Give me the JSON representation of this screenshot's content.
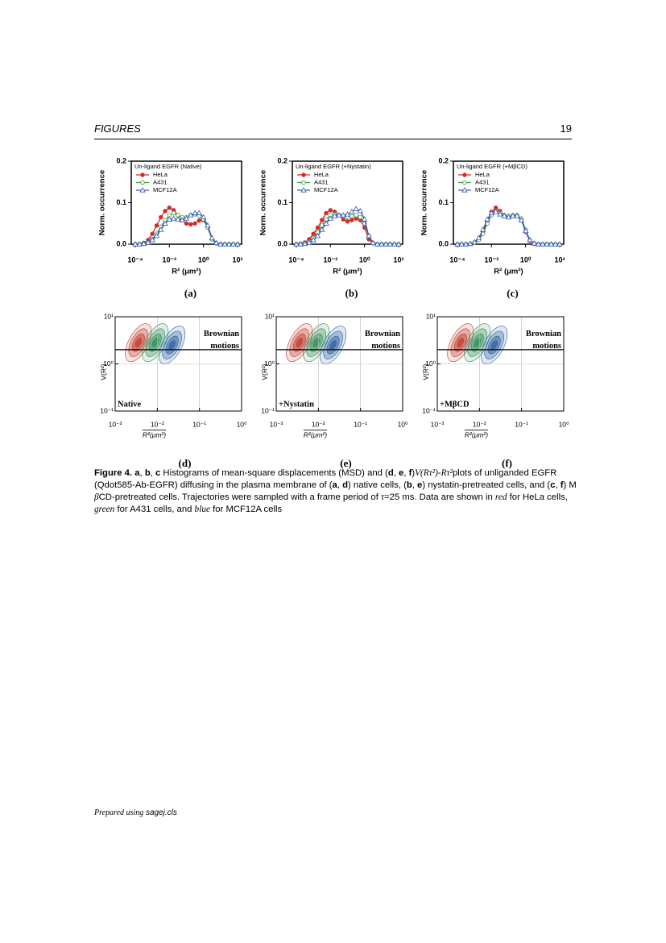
{
  "header": {
    "left": "FIGURES",
    "right": "19"
  },
  "chart_data": [
    {
      "type": "line",
      "label": "(a)",
      "legend_title": "Un-ligand EGFR (Native)",
      "ylabel": "Norm. occurrence",
      "xlabel": "R² (μm²)",
      "xscale": "log",
      "xlim": [
        0.0001,
        100
      ],
      "ylim": [
        0,
        0.2
      ],
      "xticks": [
        {
          "value": 0.0001,
          "label": "10⁻⁴"
        },
        {
          "value": 0.01,
          "label": "10⁻²"
        },
        {
          "value": 1,
          "label": "10⁰"
        },
        {
          "value": 100,
          "label": "10²"
        }
      ],
      "yticks": [
        {
          "value": 0,
          "label": "0.0"
        },
        0.1,
        0.2
      ],
      "x": [
        0.0001,
        0.000178,
        0.000316,
        0.000562,
        0.001,
        0.00178,
        0.00316,
        0.00562,
        0.01,
        0.0178,
        0.0316,
        0.0562,
        0.1,
        0.178,
        0.316,
        0.562,
        1,
        1.78,
        3.16,
        5.62,
        10,
        17.8,
        31.6,
        56.2,
        100
      ],
      "series": [
        {
          "name": "HeLa",
          "color": "#d42a2a",
          "marker": "circle-filled",
          "values": [
            0,
            0,
            0.003,
            0.01,
            0.025,
            0.045,
            0.065,
            0.08,
            0.088,
            0.082,
            0.07,
            0.058,
            0.05,
            0.048,
            0.05,
            0.057,
            0.058,
            0.04,
            0.012,
            0.002,
            0,
            0,
            0,
            0,
            0
          ]
        },
        {
          "name": "A431",
          "color": "#3a9a3a",
          "marker": "circle-open",
          "values": [
            0,
            0,
            0.001,
            0.005,
            0.012,
            0.025,
            0.042,
            0.058,
            0.07,
            0.075,
            0.07,
            0.065,
            0.065,
            0.07,
            0.072,
            0.068,
            0.06,
            0.04,
            0.012,
            0.002,
            0,
            0,
            0,
            0,
            0
          ]
        },
        {
          "name": "MCF12A",
          "color": "#3355bb",
          "marker": "triangle-open",
          "values": [
            0,
            0,
            0.001,
            0.004,
            0.01,
            0.02,
            0.035,
            0.05,
            0.06,
            0.062,
            0.06,
            0.058,
            0.062,
            0.07,
            0.075,
            0.075,
            0.065,
            0.045,
            0.015,
            0.003,
            0,
            0,
            0,
            0,
            0
          ]
        }
      ]
    },
    {
      "type": "line",
      "label": "(b)",
      "legend_title": "Un-ligand EGFR (+Nystatin)",
      "ylabel": "Norm. occurrence",
      "xlabel": "R² (μm²)",
      "xscale": "log",
      "xlim": [
        0.0001,
        100
      ],
      "ylim": [
        0,
        0.2
      ],
      "xticks": [
        {
          "value": 0.0001,
          "label": "10⁻⁴"
        },
        {
          "value": 0.01,
          "label": "10⁻²"
        },
        {
          "value": 1,
          "label": "10⁰"
        },
        {
          "value": 100,
          "label": "10²"
        }
      ],
      "yticks": [
        {
          "value": 0,
          "label": "0.0"
        },
        0.1,
        0.2
      ],
      "x": [
        0.0001,
        0.000178,
        0.000316,
        0.000562,
        0.001,
        0.00178,
        0.00316,
        0.00562,
        0.01,
        0.0178,
        0.0316,
        0.0562,
        0.1,
        0.178,
        0.316,
        0.562,
        1,
        1.78,
        3.16,
        5.62,
        10,
        17.8,
        31.6,
        56.2,
        100
      ],
      "series": [
        {
          "name": "HeLa",
          "color": "#d42a2a",
          "marker": "circle-filled",
          "values": [
            0,
            0.001,
            0.004,
            0.012,
            0.025,
            0.04,
            0.058,
            0.075,
            0.082,
            0.078,
            0.07,
            0.06,
            0.055,
            0.058,
            0.062,
            0.058,
            0.04,
            0.012,
            0.002,
            0,
            0,
            0,
            0,
            0,
            0
          ]
        },
        {
          "name": "A431",
          "color": "#3a9a3a",
          "marker": "circle-open",
          "values": [
            0,
            0,
            0.002,
            0.006,
            0.015,
            0.028,
            0.045,
            0.06,
            0.07,
            0.072,
            0.07,
            0.068,
            0.065,
            0.068,
            0.07,
            0.065,
            0.05,
            0.02,
            0.003,
            0,
            0,
            0,
            0,
            0,
            0
          ]
        },
        {
          "name": "MCF12A",
          "color": "#3355bb",
          "marker": "triangle-open",
          "values": [
            0,
            0,
            0.001,
            0.004,
            0.01,
            0.02,
            0.035,
            0.05,
            0.062,
            0.068,
            0.07,
            0.07,
            0.072,
            0.078,
            0.085,
            0.08,
            0.06,
            0.02,
            0.003,
            0,
            0,
            0,
            0,
            0,
            0
          ]
        }
      ]
    },
    {
      "type": "line",
      "label": "(c)",
      "legend_title": "Un-ligand EGFR (+MβCD)",
      "ylabel": "Norm. occurrence",
      "xlabel": "R² (μm²)",
      "xscale": "log",
      "xlim": [
        0.0001,
        100
      ],
      "ylim": [
        0,
        0.2
      ],
      "xticks": [
        {
          "value": 0.0001,
          "label": "10⁻⁴"
        },
        {
          "value": 0.01,
          "label": "10⁻²"
        },
        {
          "value": 1,
          "label": "10⁰"
        },
        {
          "value": 100,
          "label": "10²"
        }
      ],
      "yticks": [
        {
          "value": 0,
          "label": "0.0"
        },
        0.1,
        0.2
      ],
      "x": [
        0.0001,
        0.000178,
        0.000316,
        0.000562,
        0.001,
        0.00178,
        0.00316,
        0.00562,
        0.01,
        0.0178,
        0.0316,
        0.0562,
        0.1,
        0.178,
        0.316,
        0.562,
        1,
        1.78,
        3.16,
        5.62,
        10,
        17.8,
        31.6,
        56.2,
        100
      ],
      "series": [
        {
          "name": "HeLa",
          "color": "#d42a2a",
          "marker": "circle-filled",
          "values": [
            0,
            0,
            0,
            0.001,
            0.004,
            0.012,
            0.03,
            0.055,
            0.078,
            0.088,
            0.08,
            0.07,
            0.065,
            0.068,
            0.07,
            0.06,
            0.03,
            0.008,
            0.001,
            0,
            0,
            0,
            0,
            0,
            0
          ]
        },
        {
          "name": "A431",
          "color": "#3a9a3a",
          "marker": "circle-open",
          "values": [
            0,
            0,
            0,
            0.001,
            0.003,
            0.01,
            0.025,
            0.05,
            0.07,
            0.08,
            0.075,
            0.07,
            0.068,
            0.07,
            0.07,
            0.062,
            0.035,
            0.01,
            0.002,
            0,
            0,
            0,
            0,
            0,
            0
          ]
        },
        {
          "name": "MCF12A",
          "color": "#3355bb",
          "marker": "triangle-open",
          "values": [
            0,
            0,
            0,
            0.001,
            0.005,
            0.015,
            0.035,
            0.06,
            0.075,
            0.078,
            0.072,
            0.068,
            0.065,
            0.068,
            0.068,
            0.058,
            0.032,
            0.01,
            0.002,
            0,
            0,
            0,
            0,
            0,
            0
          ]
        }
      ]
    },
    {
      "type": "contour",
      "label": "(d)",
      "corner_text": "Native",
      "region_text": "Brownian motions",
      "ylabel": "V(R²)",
      "xlabel": "R²(μm²)",
      "xscale": "log",
      "yscale": "log",
      "grid": true,
      "xlim": [
        0.001,
        1
      ],
      "ylim": [
        0.1,
        10
      ],
      "threshold": 2,
      "xticks": [
        {
          "value": 0.001,
          "label": "10⁻³"
        },
        {
          "value": 0.01,
          "label": "10⁻²"
        },
        {
          "value": 0.1,
          "label": "10⁻¹"
        },
        {
          "value": 1,
          "label": "10⁰"
        }
      ],
      "yticks": [
        {
          "value": 0.1,
          "label": "10⁻¹"
        },
        {
          "value": 1,
          "label": "10⁰"
        },
        {
          "value": 10,
          "label": "10¹"
        }
      ],
      "colors": [
        "#c0392b",
        "#2e8b57",
        "#2a5fa0"
      ]
    },
    {
      "type": "contour",
      "label": "(e)",
      "corner_text": "+Nystatin",
      "region_text": "Brownian motions",
      "ylabel": "V(R²)",
      "xlabel": "R²(μm²)",
      "xscale": "log",
      "yscale": "log",
      "grid": true,
      "xlim": [
        0.001,
        1
      ],
      "ylim": [
        0.1,
        10
      ],
      "threshold": 2,
      "xticks": [
        {
          "value": 0.001,
          "label": "10⁻³"
        },
        {
          "value": 0.01,
          "label": "10⁻²"
        },
        {
          "value": 0.1,
          "label": "10⁻¹"
        },
        {
          "value": 1,
          "label": "10⁰"
        }
      ],
      "yticks": [
        {
          "value": 0.1,
          "label": "10⁻¹"
        },
        {
          "value": 1,
          "label": "10⁰"
        },
        {
          "value": 10,
          "label": "10¹"
        }
      ],
      "colors": [
        "#c0392b",
        "#2e8b57",
        "#2a5fa0"
      ]
    },
    {
      "type": "contour",
      "label": "(f)",
      "corner_text": "+MβCD",
      "region_text": "Brownian motions",
      "ylabel": "V(R²)",
      "xlabel": "R²(μm²)",
      "xscale": "log",
      "yscale": "log",
      "grid": true,
      "xlim": [
        0.001,
        1
      ],
      "ylim": [
        0.1,
        10
      ],
      "threshold": 2,
      "xticks": [
        {
          "value": 0.001,
          "label": "10⁻³"
        },
        {
          "value": 0.01,
          "label": "10⁻²"
        },
        {
          "value": 0.1,
          "label": "10⁻¹"
        },
        {
          "value": 1,
          "label": "10⁰"
        }
      ],
      "yticks": [
        {
          "value": 0.1,
          "label": "10⁻¹"
        },
        {
          "value": 1,
          "label": "10⁰"
        },
        {
          "value": 10,
          "label": "10¹"
        }
      ],
      "colors": [
        "#c0392b",
        "#2e8b57",
        "#2a5fa0"
      ]
    }
  ],
  "caption": [
    {
      "text": "Figure 4.",
      "bold": true
    },
    {
      "text": " "
    },
    {
      "text": "a",
      "bold": true
    },
    {
      "text": ", "
    },
    {
      "text": "b",
      "bold": true
    },
    {
      "text": ", "
    },
    {
      "text": "c",
      "bold": true
    },
    {
      "text": " Histograms of mean-square displacements (MSD) and ("
    },
    {
      "text": "d",
      "bold": true
    },
    {
      "text": ", "
    },
    {
      "text": "e",
      "bold": true
    },
    {
      "text": ", "
    },
    {
      "text": "f",
      "bold": true
    },
    {
      "text": ")"
    },
    {
      "text": "V(Rτ²)-Rτ²",
      "italic": true
    },
    {
      "text": "plots of unliganded EGFR (Qdot585-Ab-EGFR) diffusing in the plasma membrane of ("
    },
    {
      "text": "a",
      "bold": true
    },
    {
      "text": ", "
    },
    {
      "text": "d",
      "bold": true
    },
    {
      "text": ") native cells, ("
    },
    {
      "text": "b",
      "bold": true
    },
    {
      "text": ", "
    },
    {
      "text": "e",
      "bold": true
    },
    {
      "text": ") nystatin-pretreated cells, and ("
    },
    {
      "text": "c",
      "bold": true
    },
    {
      "text": ", "
    },
    {
      "text": "f",
      "bold": true
    },
    {
      "text": ") M "
    },
    {
      "text": "β",
      "italic": true
    },
    {
      "text": "CD-pretreated cells. Trajectories were sampled with a frame period of "
    },
    {
      "text": "τ",
      "italic": true
    },
    {
      "text": "=25 ms. Data are shown in "
    },
    {
      "text": "red",
      "italic": true
    },
    {
      "text": " for HeLa cells, "
    },
    {
      "text": "green",
      "italic": true
    },
    {
      "text": " for A431 cells, and "
    },
    {
      "text": "blue",
      "italic": true
    },
    {
      "text": " for MCF12A cells"
    }
  ],
  "footer": {
    "prefix": "Prepared using",
    "file": "sagej.cls"
  }
}
